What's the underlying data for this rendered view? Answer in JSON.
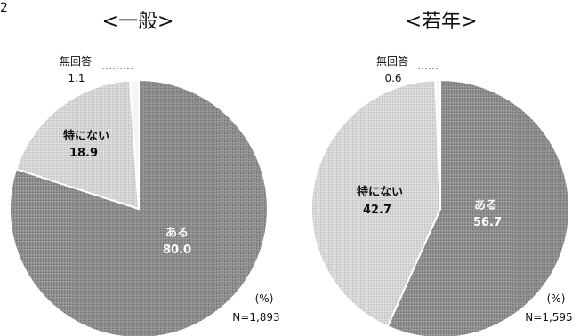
{
  "corner_mark": "2",
  "chart_data": [
    {
      "type": "pie",
      "title": "<一般>",
      "categories": [
        "ある",
        "特にない",
        "無回答"
      ],
      "values": [
        80.0,
        18.9,
        1.1
      ],
      "value_labels": [
        "80.0",
        "18.9",
        "1.1"
      ],
      "colors": [
        "#8f8f8f",
        "#d6d6d6",
        "#f4f4f4"
      ],
      "unit": "(%)",
      "n_label": "N=1,893"
    },
    {
      "type": "pie",
      "title": "<若年>",
      "categories": [
        "ある",
        "特にない",
        "無回答"
      ],
      "values": [
        56.7,
        42.7,
        0.6
      ],
      "value_labels": [
        "56.7",
        "42.7",
        "0.6"
      ],
      "colors": [
        "#8f8f8f",
        "#d6d6d6",
        "#f4f4f4"
      ],
      "unit": "(%)",
      "n_label": "N=1,595"
    }
  ]
}
